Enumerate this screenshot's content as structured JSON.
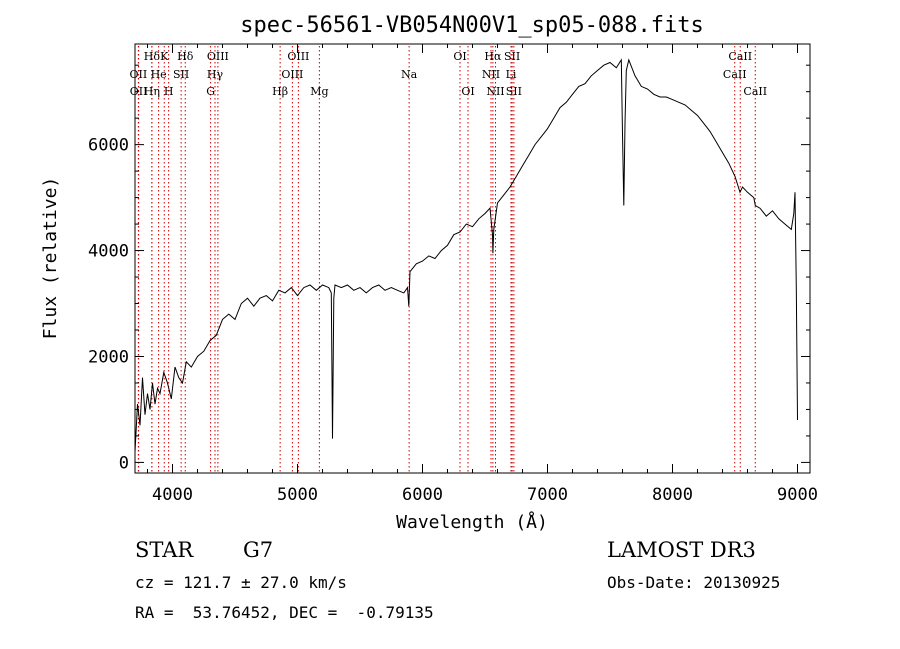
{
  "chart_data": {
    "type": "line",
    "title": "spec-56561-VB054N00V1_sp05-088.fits",
    "xlabel": "Wavelength (Å)",
    "ylabel": "Flux (relative)",
    "xlim": [
      3700,
      9100
    ],
    "ylim": [
      -200,
      7900
    ],
    "xticks": [
      4000,
      5000,
      6000,
      7000,
      8000,
      9000
    ],
    "yticks": [
      0,
      2000,
      4000,
      6000
    ],
    "series": [
      {
        "name": "spectrum",
        "x": [
          3700,
          3720,
          3740,
          3760,
          3780,
          3800,
          3820,
          3840,
          3860,
          3880,
          3900,
          3930,
          3960,
          3990,
          4020,
          4050,
          4080,
          4110,
          4150,
          4200,
          4250,
          4300,
          4350,
          4400,
          4450,
          4500,
          4550,
          4600,
          4650,
          4700,
          4750,
          4800,
          4850,
          4900,
          4950,
          5000,
          5050,
          5100,
          5150,
          5200,
          5250,
          5270,
          5280,
          5290,
          5300,
          5350,
          5400,
          5450,
          5500,
          5550,
          5600,
          5650,
          5700,
          5750,
          5800,
          5850,
          5880,
          5890,
          5900,
          5950,
          6000,
          6050,
          6100,
          6150,
          6200,
          6250,
          6300,
          6350,
          6400,
          6450,
          6500,
          6540,
          6560,
          6563,
          6570,
          6600,
          6650,
          6700,
          6750,
          6800,
          6850,
          6900,
          6950,
          7000,
          7050,
          7100,
          7150,
          7200,
          7250,
          7300,
          7350,
          7400,
          7450,
          7500,
          7550,
          7590,
          7600,
          7610,
          7620,
          7630,
          7650,
          7700,
          7750,
          7800,
          7850,
          7900,
          7950,
          8000,
          8050,
          8100,
          8150,
          8200,
          8250,
          8300,
          8350,
          8400,
          8450,
          8500,
          8540,
          8560,
          8600,
          8650,
          8662,
          8700,
          8750,
          8800,
          8850,
          8900,
          8950,
          8970,
          8980,
          8990,
          9000
        ],
        "y": [
          200,
          1100,
          700,
          1600,
          900,
          1300,
          1000,
          1500,
          1100,
          1400,
          1300,
          1700,
          1500,
          1200,
          1800,
          1600,
          1500,
          1900,
          1800,
          2000,
          2100,
          2300,
          2400,
          2700,
          2800,
          2700,
          3000,
          3100,
          2950,
          3100,
          3150,
          3050,
          3250,
          3200,
          3300,
          3150,
          3300,
          3350,
          3250,
          3350,
          3300,
          3200,
          450,
          3100,
          3350,
          3300,
          3350,
          3250,
          3300,
          3200,
          3300,
          3350,
          3250,
          3300,
          3250,
          3200,
          3300,
          2950,
          3600,
          3750,
          3800,
          3900,
          3850,
          4000,
          4100,
          4300,
          4350,
          4500,
          4450,
          4600,
          4700,
          4800,
          4300,
          3950,
          4400,
          4900,
          5050,
          5200,
          5400,
          5600,
          5800,
          6000,
          6150,
          6300,
          6500,
          6700,
          6800,
          6950,
          7100,
          7150,
          7300,
          7400,
          7500,
          7550,
          7450,
          7600,
          6200,
          4850,
          6400,
          7400,
          7600,
          7300,
          7100,
          7050,
          6950,
          6900,
          6900,
          6850,
          6800,
          6750,
          6650,
          6550,
          6400,
          6250,
          6050,
          5850,
          5650,
          5400,
          5100,
          5200,
          5100,
          5000,
          4850,
          4800,
          4650,
          4750,
          4600,
          4500,
          4400,
          4700,
          5100,
          3300,
          800
        ]
      }
    ],
    "lines": [
      {
        "label": "Hδ",
        "x": 3835,
        "row": 0
      },
      {
        "label": "OII",
        "x": 3727,
        "row": 1
      },
      {
        "label": "OII",
        "x": 3729,
        "row": 2
      },
      {
        "label": "He",
        "x": 3889,
        "row": 1
      },
      {
        "label": "Hη",
        "x": 3835,
        "row": 2
      },
      {
        "label": "K",
        "x": 3934,
        "row": 0
      },
      {
        "label": "H",
        "x": 3969,
        "row": 2
      },
      {
        "label": "SII",
        "x": 4069,
        "row": 1
      },
      {
        "label": "Hδ",
        "x": 4102,
        "row": 0
      },
      {
        "label": "OIII",
        "x": 4363,
        "row": 0
      },
      {
        "label": "Hγ",
        "x": 4340,
        "row": 1
      },
      {
        "label": "G",
        "x": 4305,
        "row": 2
      },
      {
        "label": "Hβ",
        "x": 4861,
        "row": 2
      },
      {
        "label": "OIII",
        "x": 5007,
        "row": 0
      },
      {
        "label": "OIII",
        "x": 4959,
        "row": 1
      },
      {
        "label": "Mg",
        "x": 5175,
        "row": 2
      },
      {
        "label": "Na",
        "x": 5893,
        "row": 1
      },
      {
        "label": "OI",
        "x": 6300,
        "row": 0
      },
      {
        "label": "OI",
        "x": 6364,
        "row": 2
      },
      {
        "label": "Hα",
        "x": 6563,
        "row": 0
      },
      {
        "label": "NII",
        "x": 6548,
        "row": 1
      },
      {
        "label": "NII",
        "x": 6584,
        "row": 2
      },
      {
        "label": "SII",
        "x": 6717,
        "row": 0
      },
      {
        "label": "Li",
        "x": 6708,
        "row": 1
      },
      {
        "label": "SII",
        "x": 6731,
        "row": 2
      },
      {
        "label": "CaII",
        "x": 8542,
        "row": 0
      },
      {
        "label": "CaII",
        "x": 8498,
        "row": 1
      },
      {
        "label": "CaII",
        "x": 8662,
        "row": 2
      }
    ],
    "colors": {
      "spectrum": "#000000",
      "line_marker": "#cc0000",
      "axis": "#000000"
    }
  },
  "info": {
    "object_class": "STAR",
    "subclass": "G7",
    "survey": "LAMOST DR3",
    "cz": "cz = 121.7 ± 27.0 km/s",
    "obs_date": "Obs-Date: 20130925",
    "coords": "RA =  53.76452, DEC =  -0.79135"
  }
}
